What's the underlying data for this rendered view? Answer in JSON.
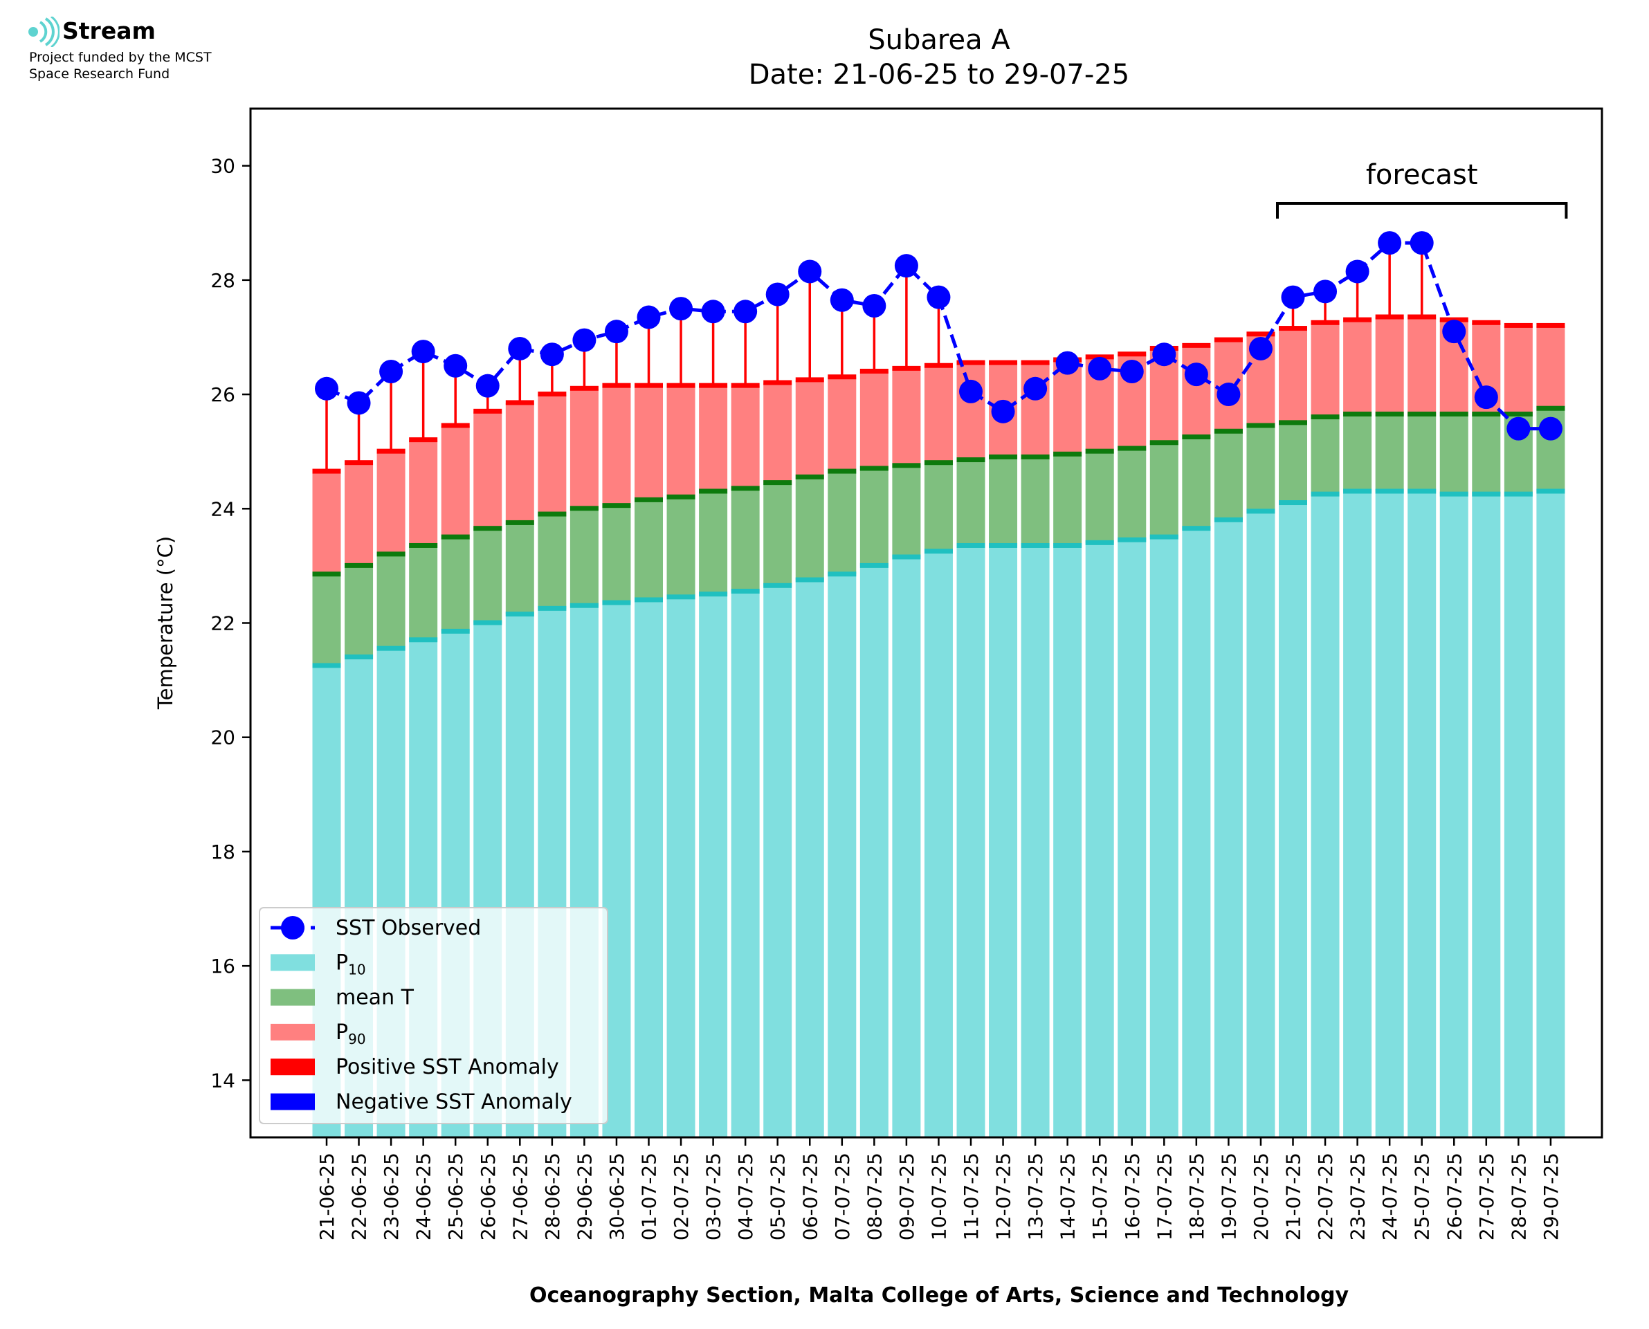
{
  "logo": {
    "name": "Stream",
    "lines": [
      "Project funded by the MCST",
      "Space Research Fund"
    ],
    "accent": "#5ed3d0"
  },
  "chart_data": {
    "type": "bar",
    "title": "Subarea A",
    "subtitle": "Date: 21-06-25 to 29-07-25",
    "xlabel": "Oceanography Section, Malta College of Arts, Science and Technology",
    "ylabel": "Temperature (°C)",
    "ylim": [
      13,
      31
    ],
    "yticks": [
      14,
      16,
      18,
      20,
      22,
      24,
      26,
      28,
      30
    ],
    "grid": false,
    "legend_position": "bottom-left",
    "categories": [
      "21-06-25",
      "22-06-25",
      "23-06-25",
      "24-06-25",
      "25-06-25",
      "26-06-25",
      "27-06-25",
      "28-06-25",
      "29-06-25",
      "30-06-25",
      "01-07-25",
      "02-07-25",
      "03-07-25",
      "04-07-25",
      "05-07-25",
      "06-07-25",
      "07-07-25",
      "08-07-25",
      "09-07-25",
      "10-07-25",
      "11-07-25",
      "12-07-25",
      "13-07-25",
      "14-07-25",
      "15-07-25",
      "16-07-25",
      "17-07-25",
      "18-07-25",
      "19-07-25",
      "20-07-25",
      "21-07-25",
      "22-07-25",
      "23-07-25",
      "24-07-25",
      "25-07-25",
      "26-07-25",
      "27-07-25",
      "28-07-25",
      "29-07-25"
    ],
    "series": [
      {
        "name": "SST Observed",
        "kind": "line",
        "color": "#0000ff",
        "values": [
          26.1,
          25.85,
          26.4,
          26.75,
          26.5,
          26.15,
          26.8,
          26.7,
          26.95,
          27.1,
          27.35,
          27.5,
          27.45,
          27.45,
          27.75,
          28.15,
          27.65,
          27.55,
          28.25,
          27.7,
          26.05,
          25.7,
          26.1,
          26.55,
          26.45,
          26.4,
          26.7,
          26.35,
          26.0,
          26.8,
          27.7,
          27.8,
          28.15,
          28.65,
          28.65,
          27.1,
          25.95,
          25.4,
          25.4
        ]
      },
      {
        "name": "P10",
        "kind": "bar",
        "color": "#80dfdf",
        "edge_color": "#20c0c0",
        "values": [
          21.25,
          21.4,
          21.55,
          21.7,
          21.85,
          22.0,
          22.15,
          22.25,
          22.3,
          22.35,
          22.4,
          22.45,
          22.5,
          22.55,
          22.65,
          22.75,
          22.85,
          23.0,
          23.15,
          23.25,
          23.35,
          23.35,
          23.35,
          23.35,
          23.4,
          23.45,
          23.5,
          23.65,
          23.8,
          23.95,
          24.1,
          24.25,
          24.3,
          24.3,
          24.3,
          24.25,
          24.25,
          24.25,
          24.3
        ]
      },
      {
        "name": "mean T",
        "kind": "bar",
        "color": "#7fbf7f",
        "edge_color": "#0d7a0d",
        "values": [
          22.85,
          23.0,
          23.2,
          23.35,
          23.5,
          23.65,
          23.75,
          23.9,
          24.0,
          24.05,
          24.15,
          24.2,
          24.3,
          24.35,
          24.45,
          24.55,
          24.65,
          24.7,
          24.75,
          24.8,
          24.85,
          24.9,
          24.9,
          24.95,
          25.0,
          25.05,
          25.15,
          25.25,
          25.35,
          25.45,
          25.5,
          25.6,
          25.65,
          25.65,
          25.65,
          25.65,
          25.65,
          25.65,
          25.75
        ]
      },
      {
        "name": "P90",
        "kind": "bar",
        "color": "#ff8080",
        "edge_color": "#ff0000",
        "values": [
          24.65,
          24.8,
          25.0,
          25.2,
          25.45,
          25.7,
          25.85,
          26.0,
          26.1,
          26.15,
          26.15,
          26.15,
          26.15,
          26.15,
          26.2,
          26.25,
          26.3,
          26.4,
          26.45,
          26.5,
          26.55,
          26.55,
          26.55,
          26.6,
          26.65,
          26.7,
          26.8,
          26.85,
          26.95,
          27.05,
          27.15,
          27.25,
          27.3,
          27.35,
          27.35,
          27.3,
          27.25,
          27.2,
          27.2
        ]
      }
    ],
    "anomaly_legend": [
      {
        "name": "Positive SST Anomaly",
        "color": "#ff0000"
      },
      {
        "name": "Negative SST Anomaly",
        "color": "#0000ff"
      }
    ],
    "annotations": [
      {
        "text": "forecast",
        "from": "21-07-25",
        "to": "29-07-25"
      }
    ]
  }
}
